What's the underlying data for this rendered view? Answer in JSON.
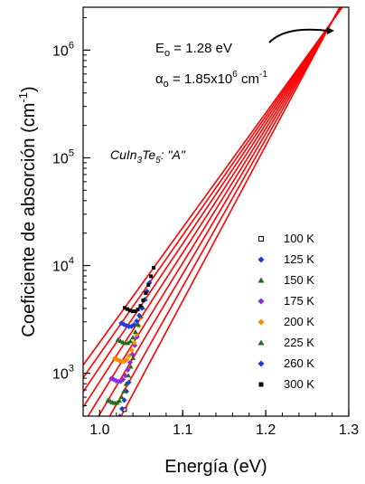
{
  "chart_data": {
    "type": "line",
    "xlabel": "Energía  (eV)",
    "ylabel": "Coeficiente de absorción  (cm",
    "ylabel_sup": "-1",
    "ylabel_close": ")",
    "xlim": [
      0.98,
      1.3
    ],
    "ylim": [
      400,
      2500000
    ],
    "yscale": "log",
    "grid": false,
    "legend": "bottom-right",
    "x_ticks": [
      {
        "value": 1.0,
        "label": "1.0"
      },
      {
        "value": 1.1,
        "label": "1.1"
      },
      {
        "value": 1.2,
        "label": "1.2"
      },
      {
        "value": 1.3,
        "label": "1.3"
      }
    ],
    "y_ticks": [
      {
        "value": 1000,
        "base": "10",
        "exp": "3"
      },
      {
        "value": 10000,
        "base": "10",
        "exp": "4"
      },
      {
        "value": 100000,
        "base": "10",
        "exp": "5"
      },
      {
        "value": 1000000,
        "base": "10",
        "exp": "6"
      }
    ],
    "fit_line_color": "#ff0000",
    "focus_point": {
      "E0": 1.28,
      "alpha0": 1850000
    },
    "annotations": {
      "e0_prefix": "E",
      "e0_sub": "o",
      "e0_value": " = 1.28 eV",
      "alpha_prefix": "α",
      "alpha_sub": "o",
      "alpha_value": " = 1.85x10",
      "alpha_exp": "6",
      "alpha_unit": " cm",
      "alpha_unit_exp": "-1",
      "sample_main": "CuIn",
      "sample_sub1": "3",
      "sample_mid": "Te",
      "sample_sub2": "5",
      "sample_tail": ": \"A\""
    },
    "series": [
      {
        "name": "100 K",
        "color": "#000000",
        "marker": "square-open",
        "x_start": 1.0,
        "x_end": 1.03,
        "slope": 33.2
      },
      {
        "name": "125 K",
        "color": "#1a3fd6",
        "marker": "diamond",
        "x_start": 1.005,
        "x_end": 1.035,
        "slope": 31.5
      },
      {
        "name": "150 K",
        "color": "#1e6e1e",
        "marker": "triangle",
        "x_start": 1.01,
        "x_end": 1.04,
        "slope": 30.0
      },
      {
        "name": "175 K",
        "color": "#8a2be2",
        "marker": "diamond",
        "x_start": 1.014,
        "x_end": 1.045,
        "slope": 28.7
      },
      {
        "name": "200 K",
        "color": "#ff8c00",
        "marker": "diamond",
        "x_start": 1.018,
        "x_end": 1.05,
        "slope": 27.5
      },
      {
        "name": "225 K",
        "color": "#1e6e1e",
        "marker": "triangle",
        "x_start": 1.022,
        "x_end": 1.055,
        "slope": 26.4
      },
      {
        "name": "260 K",
        "color": "#1a3fd6",
        "marker": "diamond",
        "x_start": 1.026,
        "x_end": 1.06,
        "slope": 25.4
      },
      {
        "name": "300 K",
        "color": "#000000",
        "marker": "square",
        "x_start": 1.03,
        "x_end": 1.065,
        "slope": 24.5
      }
    ]
  }
}
